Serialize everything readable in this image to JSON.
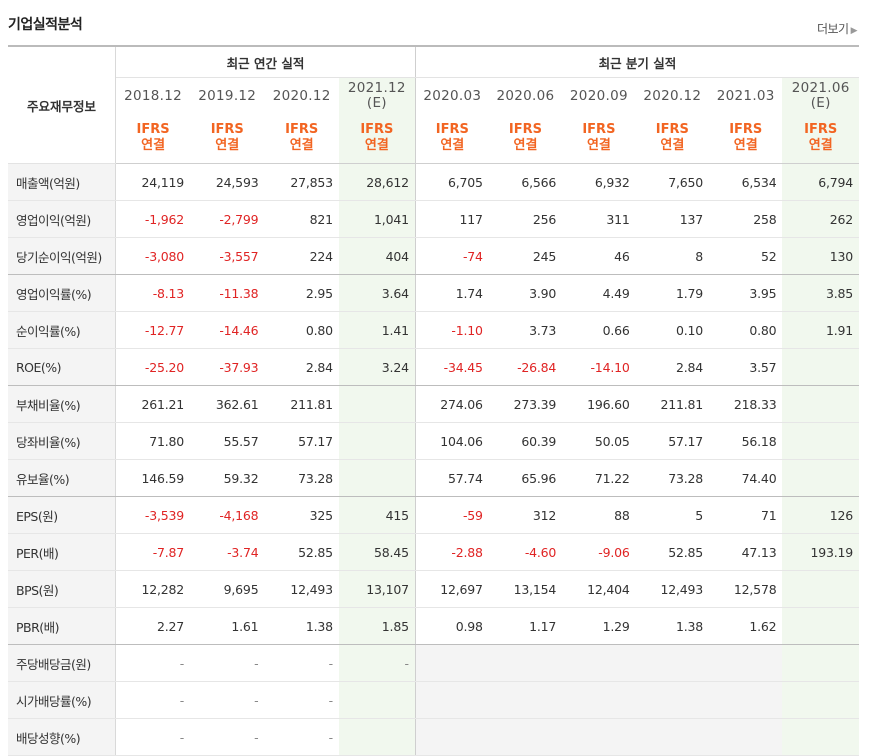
{
  "header": {
    "title": "기업실적분석",
    "more_label": "더보기"
  },
  "table": {
    "row_header_label": "주요재무정보",
    "group_annual": "최근 연간 실적",
    "group_quarter": "최근 분기 실적",
    "periods": [
      {
        "year": "2018.12",
        "estimate": "",
        "ifrs1": "IFRS",
        "ifrs2": "연결"
      },
      {
        "year": "2019.12",
        "estimate": "",
        "ifrs1": "IFRS",
        "ifrs2": "연결"
      },
      {
        "year": "2020.12",
        "estimate": "",
        "ifrs1": "IFRS",
        "ifrs2": "연결"
      },
      {
        "year": "2021.12",
        "estimate": "(E)",
        "ifrs1": "IFRS",
        "ifrs2": "연결"
      },
      {
        "year": "2020.03",
        "estimate": "",
        "ifrs1": "IFRS",
        "ifrs2": "연결"
      },
      {
        "year": "2020.06",
        "estimate": "",
        "ifrs1": "IFRS",
        "ifrs2": "연결"
      },
      {
        "year": "2020.09",
        "estimate": "",
        "ifrs1": "IFRS",
        "ifrs2": "연결"
      },
      {
        "year": "2020.12",
        "estimate": "",
        "ifrs1": "IFRS",
        "ifrs2": "연결"
      },
      {
        "year": "2021.03",
        "estimate": "",
        "ifrs1": "IFRS",
        "ifrs2": "연결"
      },
      {
        "year": "2021.06",
        "estimate": "(E)",
        "ifrs1": "IFRS",
        "ifrs2": "연결"
      }
    ],
    "rows": [
      {
        "label": "매출액(억원)",
        "values": [
          "24,119",
          "24,593",
          "27,853",
          "28,612",
          "6,705",
          "6,566",
          "6,932",
          "7,650",
          "6,534",
          "6,794"
        ]
      },
      {
        "label": "영업이익(억원)",
        "values": [
          "-1,962",
          "-2,799",
          "821",
          "1,041",
          "117",
          "256",
          "311",
          "137",
          "258",
          "262"
        ]
      },
      {
        "label": "당기순이익(억원)",
        "values": [
          "-3,080",
          "-3,557",
          "224",
          "404",
          "-74",
          "245",
          "46",
          "8",
          "52",
          "130"
        ]
      },
      {
        "label": "영업이익률(%)",
        "values": [
          "-8.13",
          "-11.38",
          "2.95",
          "3.64",
          "1.74",
          "3.90",
          "4.49",
          "1.79",
          "3.95",
          "3.85"
        ]
      },
      {
        "label": "순이익률(%)",
        "values": [
          "-12.77",
          "-14.46",
          "0.80",
          "1.41",
          "-1.10",
          "3.73",
          "0.66",
          "0.10",
          "0.80",
          "1.91"
        ]
      },
      {
        "label": "ROE(%)",
        "values": [
          "-25.20",
          "-37.93",
          "2.84",
          "3.24",
          "-34.45",
          "-26.84",
          "-14.10",
          "2.84",
          "3.57",
          ""
        ]
      },
      {
        "label": "부채비율(%)",
        "values": [
          "261.21",
          "362.61",
          "211.81",
          "",
          "274.06",
          "273.39",
          "196.60",
          "211.81",
          "218.33",
          ""
        ]
      },
      {
        "label": "당좌비율(%)",
        "values": [
          "71.80",
          "55.57",
          "57.17",
          "",
          "104.06",
          "60.39",
          "50.05",
          "57.17",
          "56.18",
          ""
        ]
      },
      {
        "label": "유보율(%)",
        "values": [
          "146.59",
          "59.32",
          "73.28",
          "",
          "57.74",
          "65.96",
          "71.22",
          "73.28",
          "74.40",
          ""
        ]
      },
      {
        "label": "EPS(원)",
        "values": [
          "-3,539",
          "-4,168",
          "325",
          "415",
          "-59",
          "312",
          "88",
          "5",
          "71",
          "126"
        ]
      },
      {
        "label": "PER(배)",
        "values": [
          "-7.87",
          "-3.74",
          "52.85",
          "58.45",
          "-2.88",
          "-4.60",
          "-9.06",
          "52.85",
          "47.13",
          "193.19"
        ]
      },
      {
        "label": "BPS(원)",
        "values": [
          "12,282",
          "9,695",
          "12,493",
          "13,107",
          "12,697",
          "13,154",
          "12,404",
          "12,493",
          "12,578",
          ""
        ]
      },
      {
        "label": "PBR(배)",
        "values": [
          "2.27",
          "1.61",
          "1.38",
          "1.85",
          "0.98",
          "1.17",
          "1.29",
          "1.38",
          "1.62",
          ""
        ]
      },
      {
        "label": "주당배당금(원)",
        "values": [
          "-",
          "-",
          "-",
          "-",
          "",
          "",
          "",
          "",
          "",
          ""
        ]
      },
      {
        "label": "시가배당률(%)",
        "values": [
          "-",
          "-",
          "-",
          "",
          "",
          "",
          "",
          "",
          "",
          ""
        ]
      },
      {
        "label": "배당성향(%)",
        "values": [
          "-",
          "-",
          "-",
          "",
          "",
          "",
          "",
          "",
          "",
          ""
        ]
      }
    ]
  },
  "colors": {
    "negative": "#e02424",
    "ifrs": "#f26522",
    "estimate_bg": "#f1f8ee",
    "label_bg": "#f4f4f4"
  }
}
